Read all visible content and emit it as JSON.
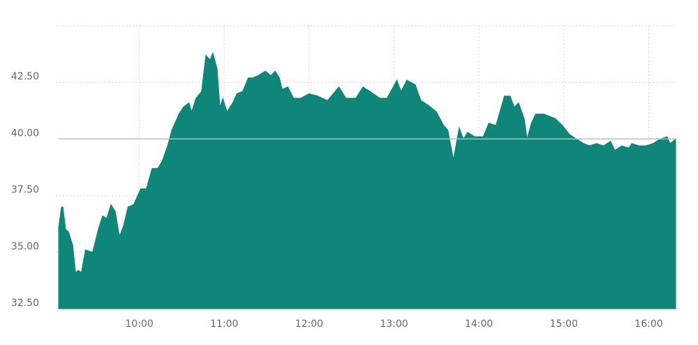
{
  "chart_data": {
    "type": "area",
    "color": "#10857a",
    "grid": true,
    "reference_line": 40,
    "xlim": [
      543,
      979
    ],
    "xticks": [
      {
        "value": 600,
        "label": "10:00"
      },
      {
        "value": 660,
        "label": "11:00"
      },
      {
        "value": 720,
        "label": "12:00"
      },
      {
        "value": 780,
        "label": "13:00"
      },
      {
        "value": 840,
        "label": "14:00"
      },
      {
        "value": 900,
        "label": "15:00"
      },
      {
        "value": 960,
        "label": "16:00"
      }
    ],
    "ylim": [
      32.5,
      45
    ],
    "yticks": [
      {
        "value": 32.5,
        "label": "32.50"
      },
      {
        "value": 35,
        "label": "35.00"
      },
      {
        "value": 37.5,
        "label": "37.50"
      },
      {
        "value": 40,
        "label": "40.00"
      },
      {
        "value": 42.5,
        "label": "42.50"
      }
    ],
    "x": [
      543,
      545,
      546,
      548,
      550,
      553,
      555,
      557,
      559,
      562,
      567,
      571,
      574,
      577,
      580,
      583,
      586,
      589,
      592,
      596,
      601,
      605,
      609,
      613,
      616,
      620,
      623,
      628,
      631,
      635,
      637,
      640,
      644,
      647,
      650,
      652,
      655,
      657,
      659,
      662,
      666,
      669,
      673,
      677,
      680,
      684,
      689,
      693,
      696,
      699,
      701,
      705,
      709,
      714,
      720,
      726,
      733,
      741,
      746,
      753,
      758,
      763,
      770,
      775,
      782,
      785,
      789,
      795,
      799,
      804,
      810,
      815,
      818,
      822,
      826,
      829,
      832,
      837,
      843,
      847,
      852,
      858,
      862,
      865,
      868,
      872,
      874,
      877,
      880,
      886,
      894,
      899,
      904,
      909,
      914,
      918,
      923,
      928,
      933,
      936,
      941,
      946,
      948,
      953,
      958,
      963,
      968,
      973,
      975,
      979
    ],
    "values": [
      36.1,
      37.0,
      37.0,
      36.0,
      35.9,
      35.3,
      34.1,
      34.2,
      34.1,
      35.1,
      35.0,
      36.0,
      36.6,
      36.5,
      37.1,
      36.8,
      35.7,
      36.2,
      37.0,
      37.1,
      37.8,
      37.8,
      38.7,
      38.7,
      39.0,
      39.7,
      40.4,
      41.1,
      41.4,
      41.6,
      41.2,
      41.8,
      42.1,
      43.7,
      43.5,
      43.8,
      43.1,
      41.4,
      41.8,
      41.2,
      41.6,
      42.0,
      42.1,
      42.7,
      42.7,
      42.8,
      43.0,
      42.8,
      43.0,
      42.7,
      42.2,
      42.3,
      41.8,
      41.8,
      42.0,
      41.9,
      41.7,
      42.3,
      41.8,
      41.8,
      42.3,
      42.1,
      41.8,
      41.8,
      42.6,
      42.1,
      42.6,
      42.4,
      41.7,
      41.5,
      41.2,
      40.6,
      40.4,
      39.1,
      40.5,
      40.0,
      40.3,
      40.1,
      40.1,
      40.7,
      40.6,
      41.9,
      41.9,
      41.4,
      41.6,
      40.9,
      40.0,
      40.7,
      41.1,
      41.1,
      40.9,
      40.6,
      40.2,
      40.0,
      39.8,
      39.7,
      39.8,
      39.7,
      39.9,
      39.5,
      39.7,
      39.6,
      39.8,
      39.7,
      39.7,
      39.8,
      40.0,
      40.1,
      39.8,
      40.0
    ]
  }
}
